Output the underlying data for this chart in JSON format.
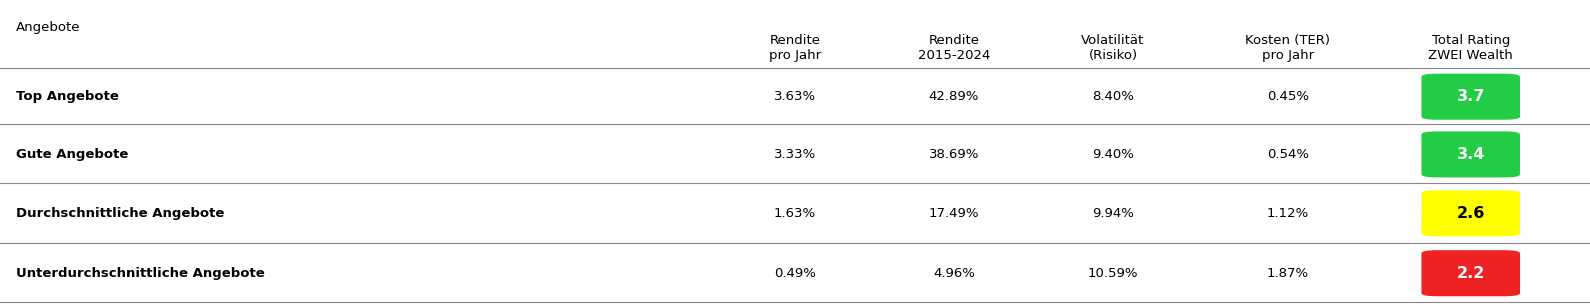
{
  "header_col": "Angebote",
  "col_headers": [
    "Rendite\npro Jahr",
    "Rendite\n2015-2024",
    "Volatilität\n(Risiko)",
    "Kosten (TER)\npro Jahr",
    "Total Rating\nZWEI Wealth"
  ],
  "rows": [
    {
      "label": "Top Angebote",
      "bold": true,
      "values": [
        "3.63%",
        "42.89%",
        "8.40%",
        "0.45%"
      ],
      "rating": "3.7",
      "rating_color": "#22cc44"
    },
    {
      "label": "Gute Angebote",
      "bold": true,
      "values": [
        "3.33%",
        "38.69%",
        "9.40%",
        "0.54%"
      ],
      "rating": "3.4",
      "rating_color": "#22cc44"
    },
    {
      "label": "Durchschnittliche Angebote",
      "bold": true,
      "values": [
        "1.63%",
        "17.49%",
        "9.94%",
        "1.12%"
      ],
      "rating": "2.6",
      "rating_color": "#ffff00"
    },
    {
      "label": "Unterdurchschnittliche Angebote",
      "bold": true,
      "values": [
        "0.49%",
        "4.96%",
        "10.59%",
        "1.87%"
      ],
      "rating": "2.2",
      "rating_color": "#ee2222"
    }
  ],
  "bg_color": "#ffffff",
  "text_color": "#000000",
  "line_color": "#888888",
  "header_fontsize": 9.5,
  "cell_fontsize": 9.5,
  "rating_fontsize": 11.5
}
